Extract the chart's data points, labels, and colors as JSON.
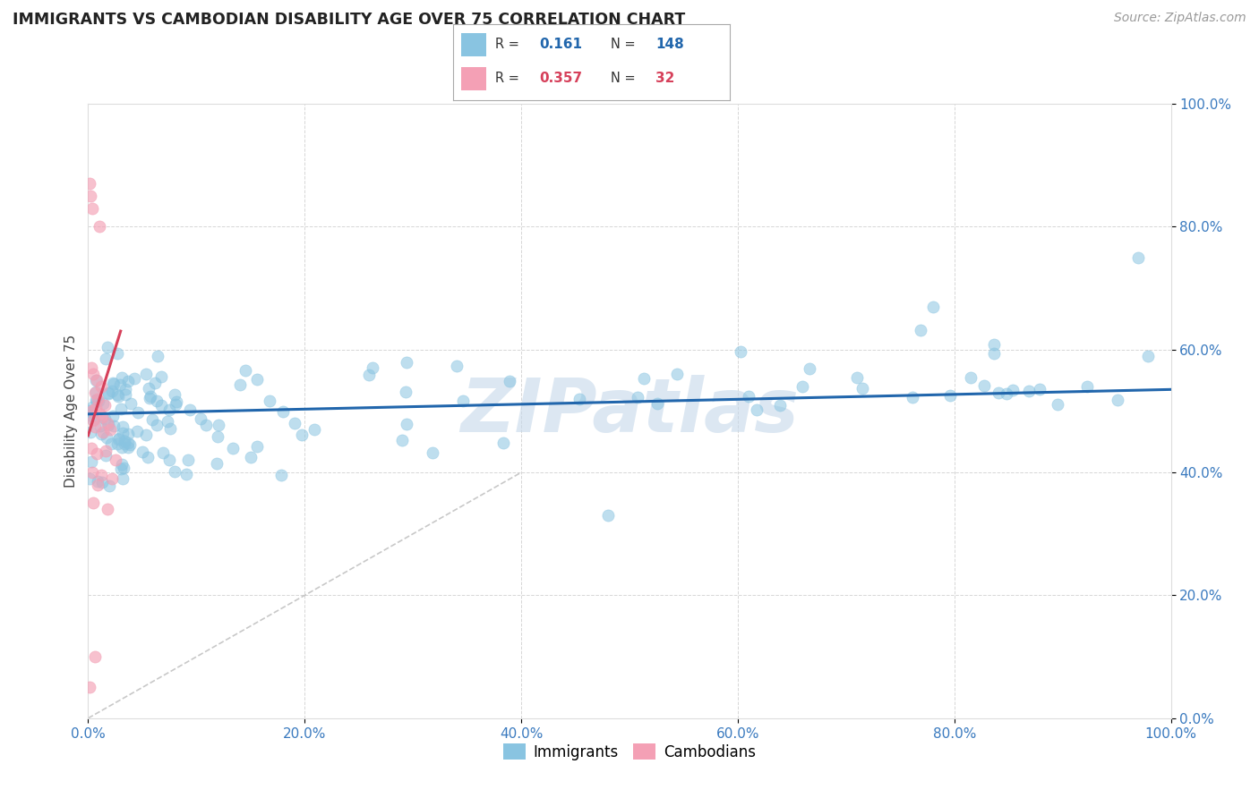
{
  "title": "IMMIGRANTS VS CAMBODIAN DISABILITY AGE OVER 75 CORRELATION CHART",
  "source": "Source: ZipAtlas.com",
  "ylabel": "Disability Age Over 75",
  "blue_color": "#89c4e1",
  "blue_edge_color": "#89c4e1",
  "pink_color": "#f4a0b5",
  "pink_edge_color": "#f4a0b5",
  "blue_line_color": "#2166ac",
  "pink_line_color": "#d6405a",
  "blue_R": 0.161,
  "blue_N": 148,
  "pink_R": 0.357,
  "pink_N": 32,
  "watermark_text": "ZIPatlas",
  "watermark_color": "#c5d8ea",
  "grid_color": "#cccccc",
  "bg_color": "#ffffff",
  "tick_color": "#3a7abf",
  "xlim": [
    0,
    100
  ],
  "ylim": [
    0,
    100
  ],
  "xticks": [
    0,
    20,
    40,
    60,
    80,
    100
  ],
  "yticks": [
    0,
    20,
    40,
    60,
    80,
    100
  ],
  "xticklabels": [
    "0.0%",
    "20.0%",
    "40.0%",
    "60.0%",
    "80.0%",
    "100.0%"
  ],
  "yticklabels": [
    "0.0%",
    "20.0%",
    "40.0%",
    "60.0%",
    "80.0%",
    "100.0%"
  ],
  "legend_blue_label": "Immigrants",
  "legend_pink_label": "Cambodians",
  "ref_line_color": "#bbbbbb",
  "ref_line_end_x": 40
}
